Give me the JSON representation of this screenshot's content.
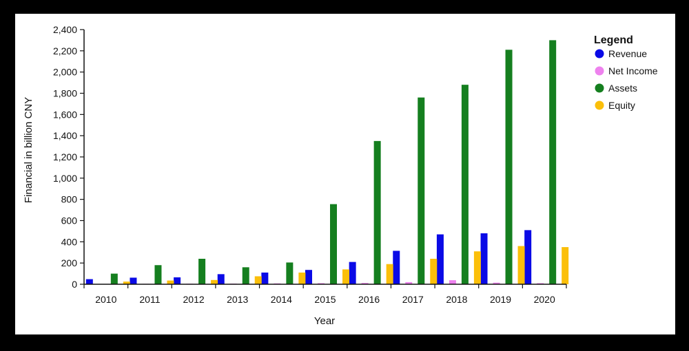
{
  "chart_data": {
    "type": "bar",
    "xlabel": "Year",
    "ylabel": "Financial in billion CNY",
    "ylim": [
      0,
      2400
    ],
    "yticks": [
      0,
      200,
      400,
      600,
      800,
      1000,
      1200,
      1400,
      1600,
      1800,
      2000,
      2200,
      2400
    ],
    "ytick_labels": [
      "0",
      "200",
      "400",
      "600",
      "800",
      "1,000",
      "1,200",
      "1,400",
      "1,600",
      "1,800",
      "2,000",
      "2,200",
      "2,400"
    ],
    "categories": [
      "2010",
      "2011",
      "2012",
      "2013",
      "2014",
      "2015",
      "2016",
      "2017",
      "2018",
      "2019",
      "2020"
    ],
    "legend_title": "Legend",
    "legend_position": "top-right",
    "grid": false,
    "series": [
      {
        "name": "Revenue",
        "color": "#0a0ae6",
        "values": [
          48,
          62,
          65,
          95,
          110,
          135,
          210,
          315,
          470,
          480,
          510
        ]
      },
      {
        "name": "Net Income",
        "color": "#ee82ee",
        "values": [
          3,
          4,
          5,
          6,
          8,
          10,
          12,
          20,
          38,
          15,
          10
        ]
      },
      {
        "name": "Assets",
        "color": "#157f1f",
        "values": [
          100,
          180,
          240,
          160,
          205,
          755,
          1350,
          1760,
          1880,
          2210,
          2300
        ]
      },
      {
        "name": "Equity",
        "color": "#fbbf0a",
        "values": [
          25,
          35,
          40,
          75,
          110,
          140,
          190,
          240,
          310,
          360,
          350
        ]
      }
    ]
  }
}
